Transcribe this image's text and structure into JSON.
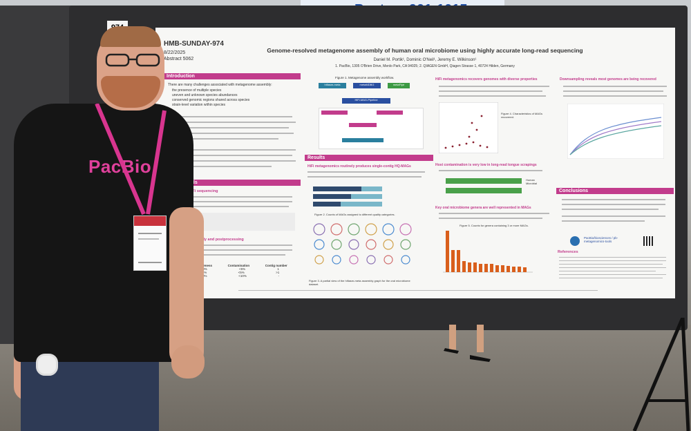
{
  "scene": {
    "sign_text": "Posters 901-1015",
    "board_number": "974"
  },
  "poster": {
    "session_id": "HMB-SUNDAY-974",
    "date": "8/22/2025",
    "abstract": "Abstract 5062",
    "title": "Genome-resolved metagenome assembly of human oral microbiome using highly accurate long-read sequencing",
    "authors": "Daniel M. Portik¹, Dominic O'Neil¹, Jeremy E. Wilkinson¹",
    "affiliations": "1. PacBio, 1305 O'Brien Drive, Menlo Park, CA 94025; 2. QIAGEN GmbH, Qiagen Strasse 1, 40724 Hilden, Germany",
    "sections": {
      "introduction": "Introduction",
      "methods": "hods",
      "results": "Results",
      "conclusions": "Conclusions",
      "references": "References"
    },
    "subheads": {
      "hifi_seq": "HiFi sequencing",
      "assembly": "Assembly and postprocessing",
      "recovers": "HiFi metagenomics recovers genomes with diverse properties",
      "multiple": "HiFi metagenomics routinely produces single-contig HQ-MAGs",
      "host": "Host contamination is very low in long-read tongue scrapings",
      "key_oral": "Key oral microbiome genera are well represented in MAGs",
      "downsampling": "Downsampling reveals most genomes are being recovered"
    },
    "intro_text": "There are many challenges associated with metagenome assembly:",
    "intro_bullets": [
      "the presence of multiple species",
      "uneven and unknown species abundances",
      "conserved genomic regions shared across species",
      "strain-level variation within species"
    ],
    "tool_boxes": [
      "hifiasm-meta",
      "metaMDBG",
      "metaFlye"
    ],
    "pipeline_label": "HiFi-MAG-Pipeline",
    "pacbio_handle": "PacBio/biosciences / pb-metagenomics-tools",
    "table_headers": [
      "Completeness",
      "Contamination",
      "Contig number"
    ],
    "table_rows": [
      [
        ">90%",
        "<5%",
        "1"
      ],
      [
        ">90%",
        "<5%",
        ">1"
      ],
      [
        ">50%",
        "<10%",
        "-"
      ]
    ],
    "host_legend": [
      "Human",
      "Microbial"
    ],
    "figure_captions": {
      "fig1": "Figure 1. Metagenome assembly workflow.",
      "fig2": "Figure 2. Counts of MAGs assigned to different quality categories.",
      "fig3": "Figure 3. A partial view of the hifiasm-meta assembly graph for the oral microbiome dataset.",
      "fig4": "Figure 4. Characteristics of MAGs recovered.",
      "fig5": "Figure 5. Counts for genera containing 3 or more MAGs."
    }
  },
  "person": {
    "shirt_logo": "PacBio"
  },
  "colors": {
    "accent": "#c23c8c",
    "sign_blue": "#1e4fa5",
    "bar_orange": "#d95f1c",
    "bar_green": "#4aa04a",
    "bar_teal": "#2a7f9e"
  }
}
